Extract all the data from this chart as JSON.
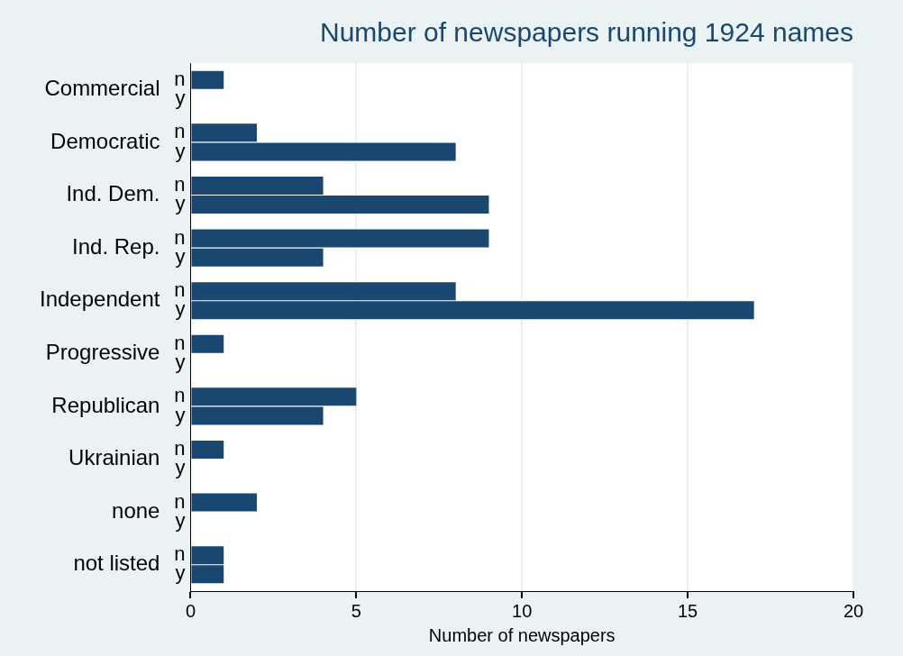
{
  "chart_data": {
    "type": "bar",
    "orientation": "horizontal",
    "title": "Number of newspapers running 1924 names",
    "xlabel": "Number of newspapers",
    "categories": [
      "Commercial",
      "Democratic",
      "Ind. Dem.",
      "Ind. Rep.",
      "Independent",
      "Progressive",
      "Republican",
      "Ukrainian",
      "none",
      "not listed"
    ],
    "series": [
      {
        "name": "n",
        "color": "#1a476f",
        "values": [
          1,
          2,
          4,
          9,
          8,
          1,
          5,
          1,
          2,
          1
        ]
      },
      {
        "name": "y",
        "color": "#1a476f",
        "values": [
          0,
          8,
          9,
          4,
          17,
          0,
          4,
          0,
          0,
          1
        ]
      }
    ],
    "xlim": [
      0,
      20
    ],
    "xticks": [
      0,
      5,
      10,
      15,
      20
    ],
    "grid": "x",
    "legend": false
  }
}
